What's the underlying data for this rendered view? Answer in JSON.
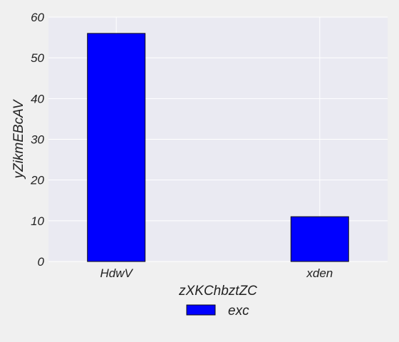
{
  "chart_data": {
    "type": "bar",
    "title": "",
    "xlabel": "zXKChbztZC",
    "ylabel": "yZikmEBcAV",
    "categories": [
      "HdwV",
      "xden"
    ],
    "series": [
      {
        "name": "exc",
        "values": [
          56,
          11
        ]
      }
    ],
    "ylim": [
      0,
      60
    ],
    "yticks": [
      0,
      10,
      20,
      30,
      40,
      50,
      60
    ],
    "grid": true,
    "legend": "bottom-center",
    "colors": {
      "bar": "#0000ff",
      "bar_edge": "#111111",
      "plot_background": "#eaeaf2",
      "page_background": "#f0f0f0",
      "grid": "#ffffff"
    }
  }
}
